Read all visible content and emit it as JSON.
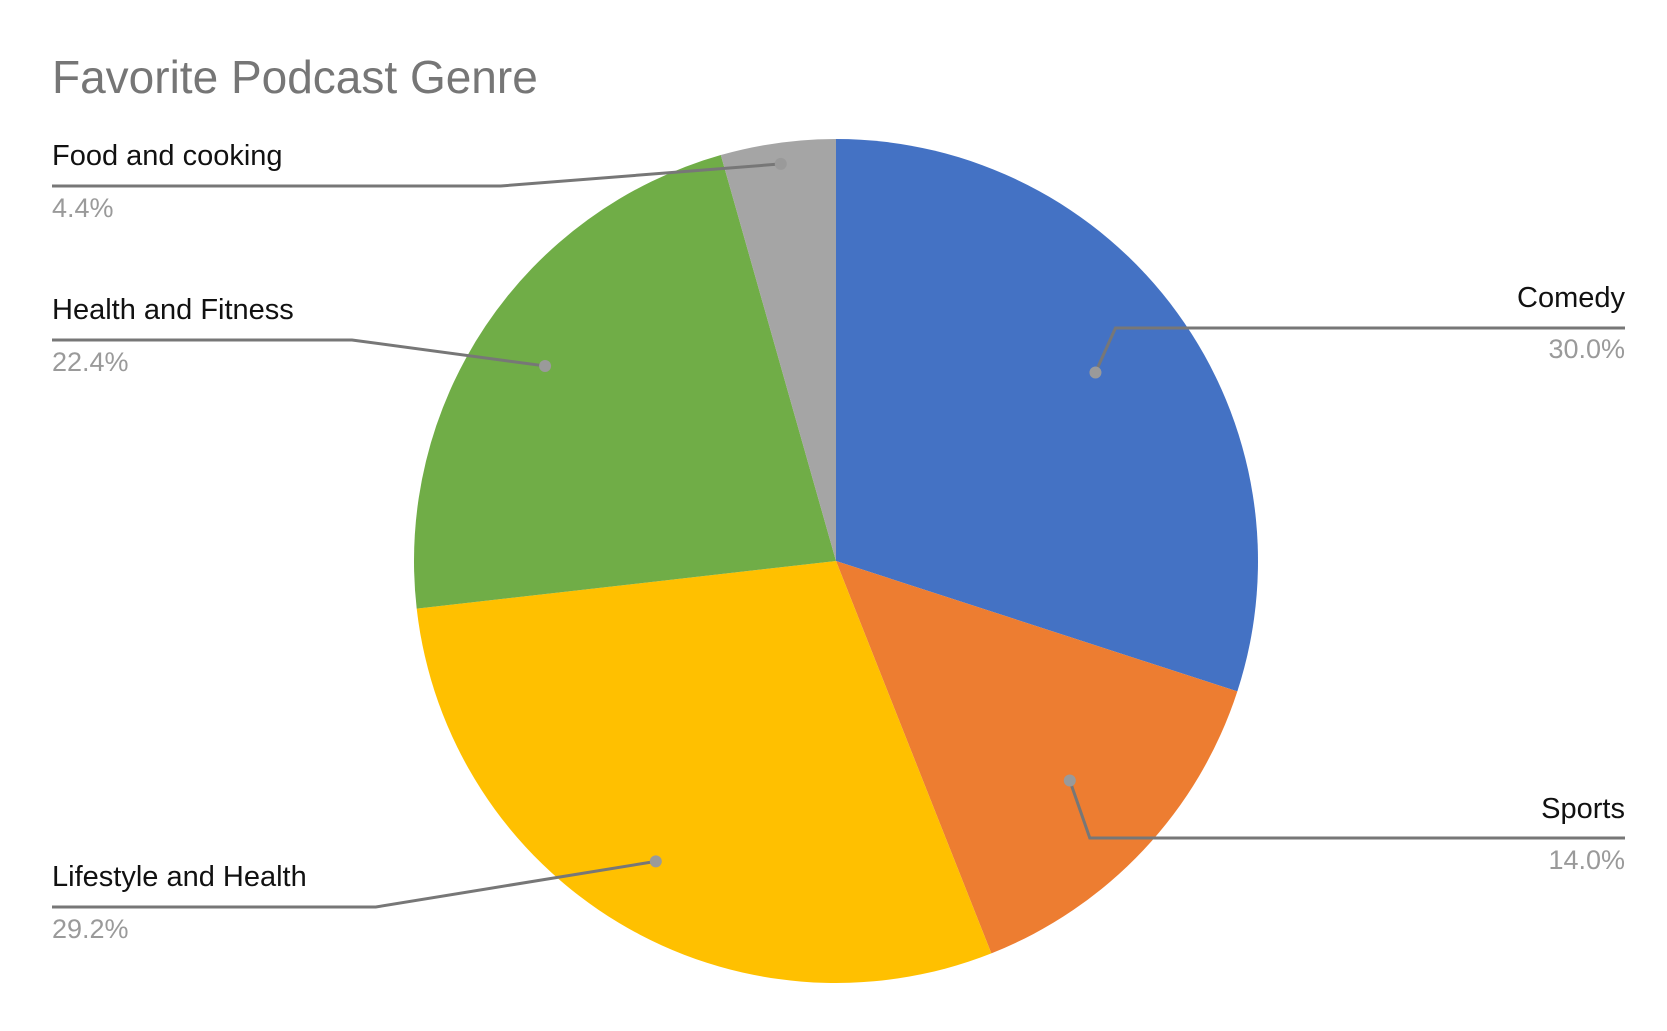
{
  "chart_data": {
    "type": "pie",
    "title": "Favorite Podcast Genre",
    "legend": "none",
    "slices": [
      {
        "label": "Comedy",
        "value": 30.0,
        "display": "30.0%",
        "color": "#4472C4"
      },
      {
        "label": "Sports",
        "value": 14.0,
        "display": "14.0%",
        "color": "#ED7D31"
      },
      {
        "label": "Lifestyle and Health",
        "value": 29.2,
        "display": "29.2%",
        "color": "#FFC000"
      },
      {
        "label": "Health and Fitness",
        "value": 22.4,
        "display": "22.4%",
        "color": "#70AD47"
      },
      {
        "label": "Food and cooking",
        "value": 4.4,
        "display": "4.4%",
        "color": "#A5A5A5"
      }
    ]
  }
}
